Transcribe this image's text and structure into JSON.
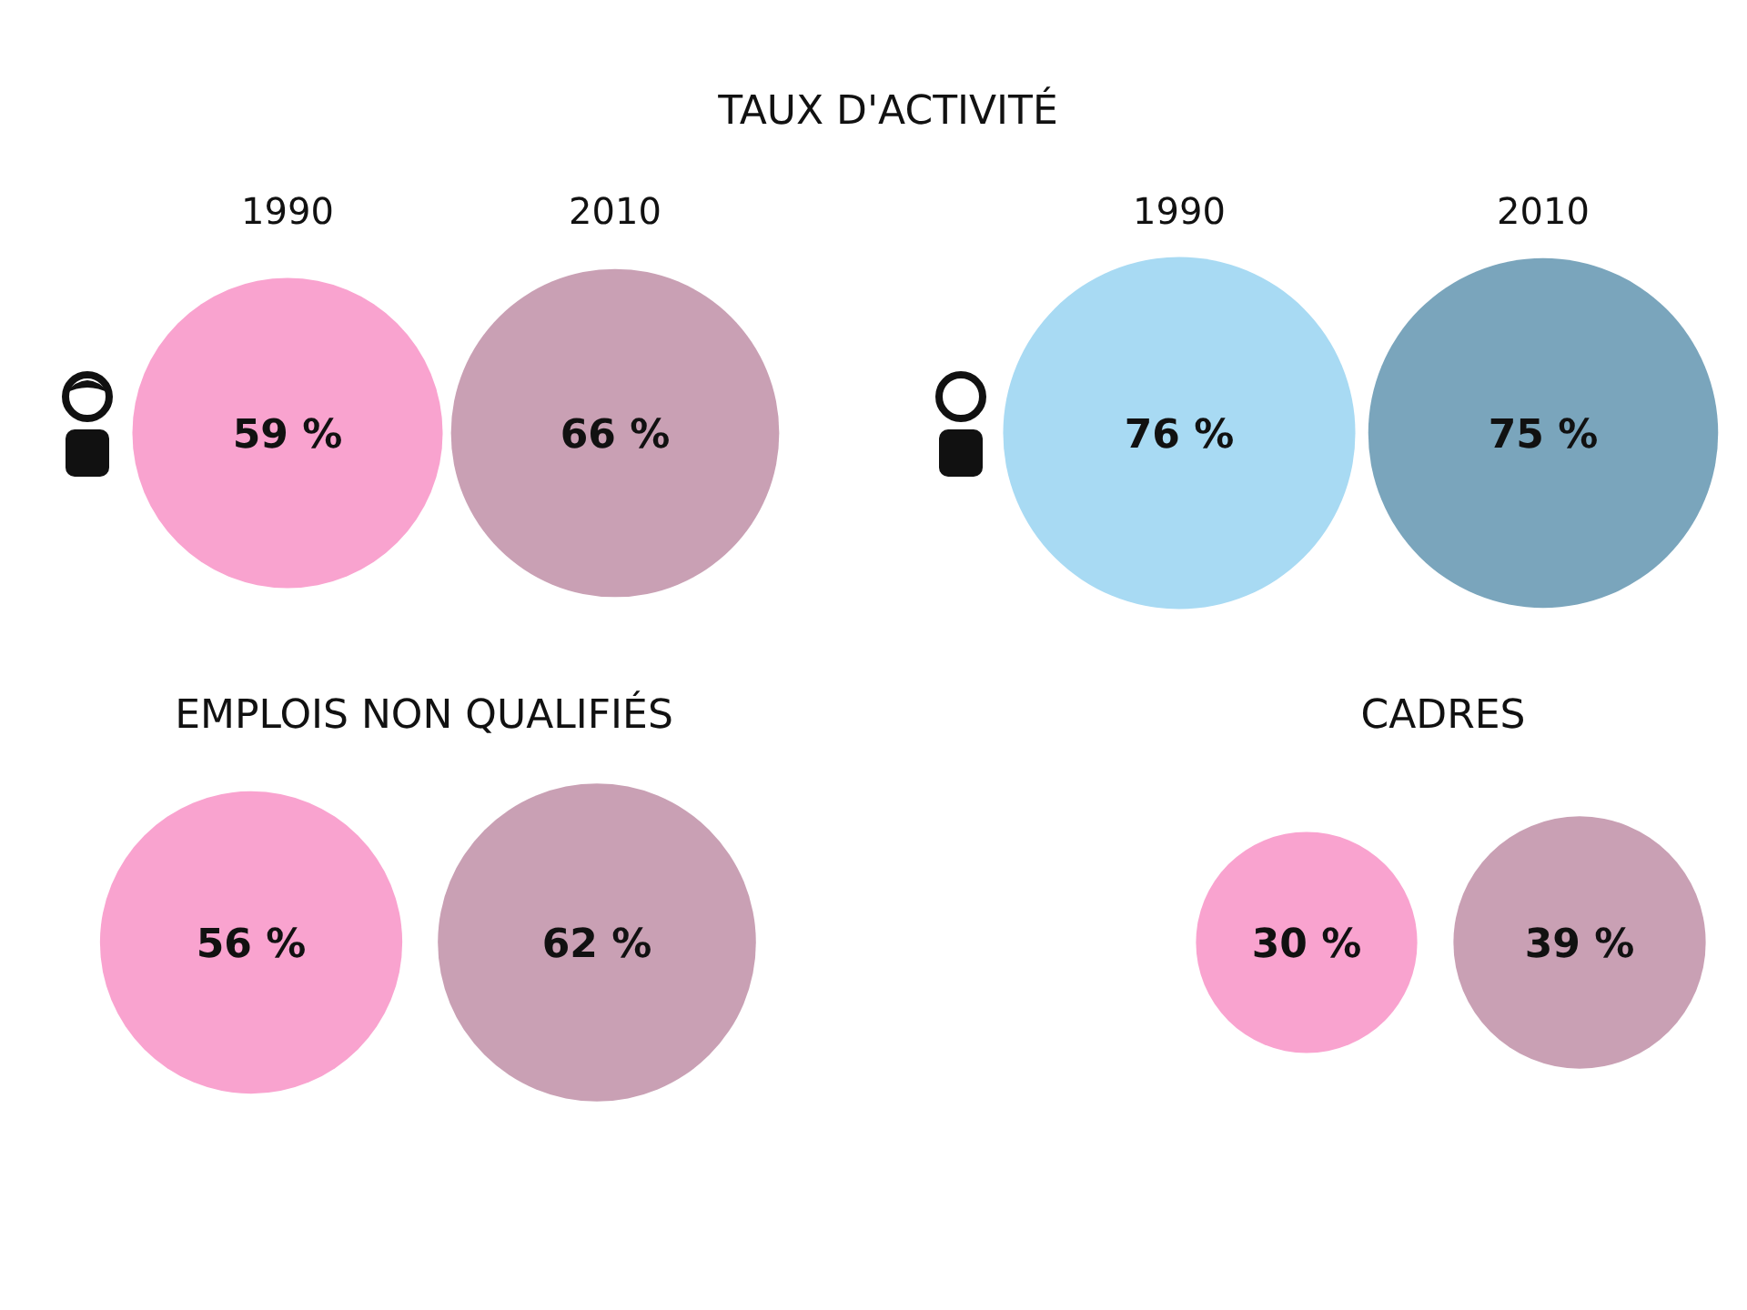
{
  "chart_data": [
    {
      "type": "other",
      "title": "TAUX D'ACTIVITÉ",
      "categories": [
        "1990",
        "2010",
        "1990",
        "2010"
      ],
      "values": [
        59,
        66,
        76,
        75
      ],
      "colors": [
        "#f9a3cf",
        "#c9a0b4",
        "#a8daf3",
        "#7aa5bc"
      ],
      "value_labels": [
        "59 %",
        "66 %",
        "76 %",
        "75 %"
      ]
    },
    {
      "type": "other",
      "title": "EMPLOIS NON QUALIFIÉS",
      "categories": [
        null,
        null
      ],
      "values": [
        56,
        62
      ],
      "colors": [
        "#f9a3cf",
        "#c9a0b4"
      ],
      "value_labels": [
        "56 %",
        "62 %"
      ]
    },
    {
      "type": "other",
      "title": "CADRES",
      "categories": [
        null,
        null
      ],
      "values": [
        30,
        39
      ],
      "colors": [
        "#f9a3cf",
        "#c9a0b4"
      ],
      "value_labels": [
        "30 %",
        "39 %"
      ]
    }
  ]
}
